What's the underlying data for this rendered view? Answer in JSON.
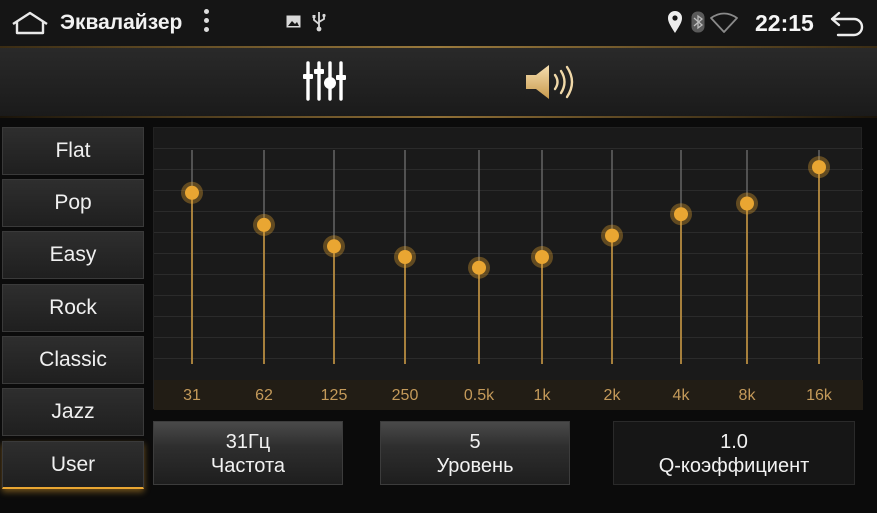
{
  "statusbar": {
    "title": "Эквалайзер",
    "time": "22:15",
    "icons": [
      "home-icon",
      "more-vert-icon",
      "photo-icon",
      "usb-icon",
      "location-icon",
      "bluetooth-icon",
      "wifi-icon",
      "back-icon"
    ]
  },
  "tabs": [
    {
      "name": "equalizer",
      "icon": "equalizer-sliders-icon",
      "active": true
    },
    {
      "name": "sound",
      "icon": "speaker-icon",
      "active": false
    }
  ],
  "presets": [
    {
      "label": "Flat"
    },
    {
      "label": "Pop"
    },
    {
      "label": "Easy"
    },
    {
      "label": "Rock"
    },
    {
      "label": "Classic"
    },
    {
      "label": "Jazz"
    },
    {
      "label": "User",
      "active": true
    }
  ],
  "equalizer": {
    "bands": [
      {
        "label": "31",
        "level": 0.8
      },
      {
        "label": "62",
        "level": 0.65
      },
      {
        "label": "125",
        "level": 0.55
      },
      {
        "label": "250",
        "level": 0.5
      },
      {
        "label": "0.5k",
        "level": 0.45
      },
      {
        "label": "1k",
        "level": 0.5
      },
      {
        "label": "2k",
        "level": 0.6
      },
      {
        "label": "4k",
        "level": 0.7
      },
      {
        "label": "8k",
        "level": 0.75
      },
      {
        "label": "16k",
        "level": 0.92
      }
    ],
    "accent": "#e9a632"
  },
  "params": [
    {
      "value": "31Гц",
      "label": "Частота"
    },
    {
      "value": "5",
      "label": "Уровень"
    },
    {
      "value": "1.0",
      "label": "Q-коэффициент"
    }
  ]
}
